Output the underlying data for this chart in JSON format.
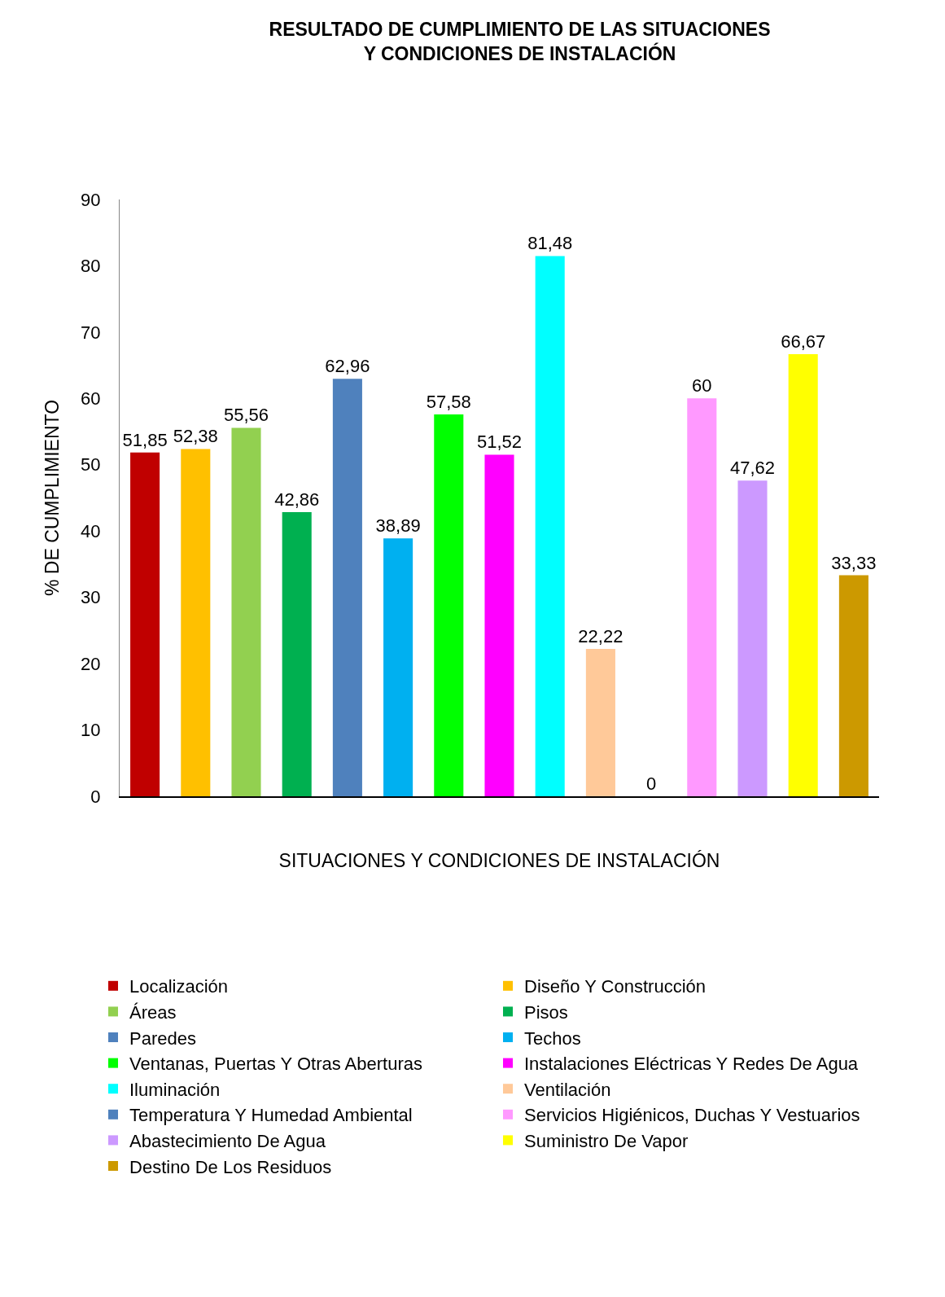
{
  "chart_data": {
    "type": "bar",
    "title": "RESULTADO DE CUMPLIMIENTO DE LAS SITUACIONES\nY CONDICIONES DE INSTALACIÓN",
    "xlabel": "SITUACIONES Y CONDICIONES DE INSTALACIÓN",
    "ylabel": "% DE CUMPLIMIENTO",
    "categories": [
      null,
      null,
      null,
      null,
      null,
      null,
      null,
      null,
      null,
      null,
      null,
      null,
      null,
      null,
      null
    ],
    "series": [
      {
        "name": "Localización",
        "color": "#c00000",
        "values": [
          51.85,
          null,
          null,
          null,
          null,
          null,
          null,
          null,
          null,
          null,
          null,
          null,
          null,
          null,
          null
        ],
        "value_labels": [
          "51,85",
          null,
          null,
          null,
          null,
          null,
          null,
          null,
          null,
          null,
          null,
          null,
          null,
          null,
          null
        ]
      },
      {
        "name": "Diseño Y Construcción",
        "color": "#ffc000",
        "values": [
          null,
          52.38,
          null,
          null,
          null,
          null,
          null,
          null,
          null,
          null,
          null,
          null,
          null,
          null,
          null
        ],
        "value_labels": [
          null,
          "52,38",
          null,
          null,
          null,
          null,
          null,
          null,
          null,
          null,
          null,
          null,
          null,
          null,
          null
        ]
      },
      {
        "name": "Áreas",
        "color": "#92d050",
        "values": [
          null,
          null,
          55.56,
          null,
          null,
          null,
          null,
          null,
          null,
          null,
          null,
          null,
          null,
          null,
          null
        ],
        "value_labels": [
          null,
          null,
          "55,56",
          null,
          null,
          null,
          null,
          null,
          null,
          null,
          null,
          null,
          null,
          null,
          null
        ]
      },
      {
        "name": "Pisos",
        "color": "#00b050",
        "values": [
          null,
          null,
          null,
          42.86,
          null,
          null,
          null,
          null,
          null,
          null,
          null,
          null,
          null,
          null,
          null
        ],
        "value_labels": [
          null,
          null,
          null,
          "42,86",
          null,
          null,
          null,
          null,
          null,
          null,
          null,
          null,
          null,
          null,
          null
        ]
      },
      {
        "name": "Paredes",
        "color": "#4f81bd",
        "values": [
          null,
          null,
          null,
          null,
          62.96,
          null,
          null,
          null,
          null,
          null,
          null,
          null,
          null,
          null,
          null
        ],
        "value_labels": [
          null,
          null,
          null,
          null,
          "62,96",
          null,
          null,
          null,
          null,
          null,
          null,
          null,
          null,
          null,
          null
        ]
      },
      {
        "name": "Techos",
        "color": "#00b0f0",
        "values": [
          null,
          null,
          null,
          null,
          null,
          38.89,
          null,
          null,
          null,
          null,
          null,
          null,
          null,
          null,
          null
        ],
        "value_labels": [
          null,
          null,
          null,
          null,
          null,
          "38,89",
          null,
          null,
          null,
          null,
          null,
          null,
          null,
          null,
          null
        ]
      },
      {
        "name": "Ventanas, Puertas Y Otras Aberturas",
        "color": "#00ff00",
        "values": [
          null,
          null,
          null,
          null,
          null,
          null,
          57.58,
          null,
          null,
          null,
          null,
          null,
          null,
          null,
          null
        ],
        "value_labels": [
          null,
          null,
          null,
          null,
          null,
          null,
          "57,58",
          null,
          null,
          null,
          null,
          null,
          null,
          null,
          null
        ]
      },
      {
        "name": "Instalaciones Eléctricas Y Redes De Agua",
        "color": "#ff00ff",
        "values": [
          null,
          null,
          null,
          null,
          null,
          null,
          null,
          51.52,
          null,
          null,
          null,
          null,
          null,
          null,
          null
        ],
        "value_labels": [
          null,
          null,
          null,
          null,
          null,
          null,
          null,
          "51,52",
          null,
          null,
          null,
          null,
          null,
          null,
          null
        ]
      },
      {
        "name": "Iluminación",
        "color": "#00ffff",
        "values": [
          null,
          null,
          null,
          null,
          null,
          null,
          null,
          null,
          81.48,
          null,
          null,
          null,
          null,
          null,
          null
        ],
        "value_labels": [
          null,
          null,
          null,
          null,
          null,
          null,
          null,
          null,
          "81,48",
          null,
          null,
          null,
          null,
          null,
          null
        ]
      },
      {
        "name": "Ventilación",
        "color": "#ffc999",
        "values": [
          null,
          null,
          null,
          null,
          null,
          null,
          null,
          null,
          null,
          22.22,
          null,
          null,
          null,
          null,
          null
        ],
        "value_labels": [
          null,
          null,
          null,
          null,
          null,
          null,
          null,
          null,
          null,
          "22,22",
          null,
          null,
          null,
          null,
          null
        ]
      },
      {
        "name": "Temperatura Y Humedad Ambiental",
        "color": "#4f81bd",
        "values": [
          null,
          null,
          null,
          null,
          null,
          null,
          null,
          null,
          null,
          null,
          0,
          null,
          null,
          null,
          null
        ],
        "value_labels": [
          null,
          null,
          null,
          null,
          null,
          null,
          null,
          null,
          null,
          null,
          "0",
          null,
          null,
          null,
          null
        ]
      },
      {
        "name": "Servicios Higiénicos, Duchas Y Vestuarios",
        "color": "#ff99ff",
        "values": [
          null,
          null,
          null,
          null,
          null,
          null,
          null,
          null,
          null,
          null,
          null,
          60,
          null,
          null,
          null
        ],
        "value_labels": [
          null,
          null,
          null,
          null,
          null,
          null,
          null,
          null,
          null,
          null,
          null,
          "60",
          null,
          null,
          null
        ]
      },
      {
        "name": "Abastecimiento De Agua",
        "color": "#cc99ff",
        "values": [
          null,
          null,
          null,
          null,
          null,
          null,
          null,
          null,
          null,
          null,
          null,
          null,
          47.62,
          null,
          null
        ],
        "value_labels": [
          null,
          null,
          null,
          null,
          null,
          null,
          null,
          null,
          null,
          null,
          null,
          null,
          "47,62",
          null,
          null
        ]
      },
      {
        "name": "Suministro De Vapor",
        "color": "#ffff00",
        "values": [
          null,
          null,
          null,
          null,
          null,
          null,
          null,
          null,
          null,
          null,
          null,
          null,
          null,
          66.67,
          null
        ],
        "value_labels": [
          null,
          null,
          null,
          null,
          null,
          null,
          null,
          null,
          null,
          null,
          null,
          null,
          null,
          "66,67",
          null
        ]
      },
      {
        "name": "Destino De Los Residuos",
        "color": "#cc9900",
        "values": [
          null,
          null,
          null,
          null,
          null,
          null,
          null,
          null,
          null,
          null,
          null,
          null,
          null,
          null,
          33.33
        ],
        "value_labels": [
          null,
          null,
          null,
          null,
          null,
          null,
          null,
          null,
          null,
          null,
          null,
          null,
          null,
          null,
          "33,33"
        ]
      }
    ],
    "ylim": [
      0,
      90
    ],
    "yticks": [
      0,
      10,
      20,
      30,
      40,
      50,
      60,
      70,
      80,
      90
    ],
    "legend": "bottom",
    "tick_labels": "y"
  }
}
